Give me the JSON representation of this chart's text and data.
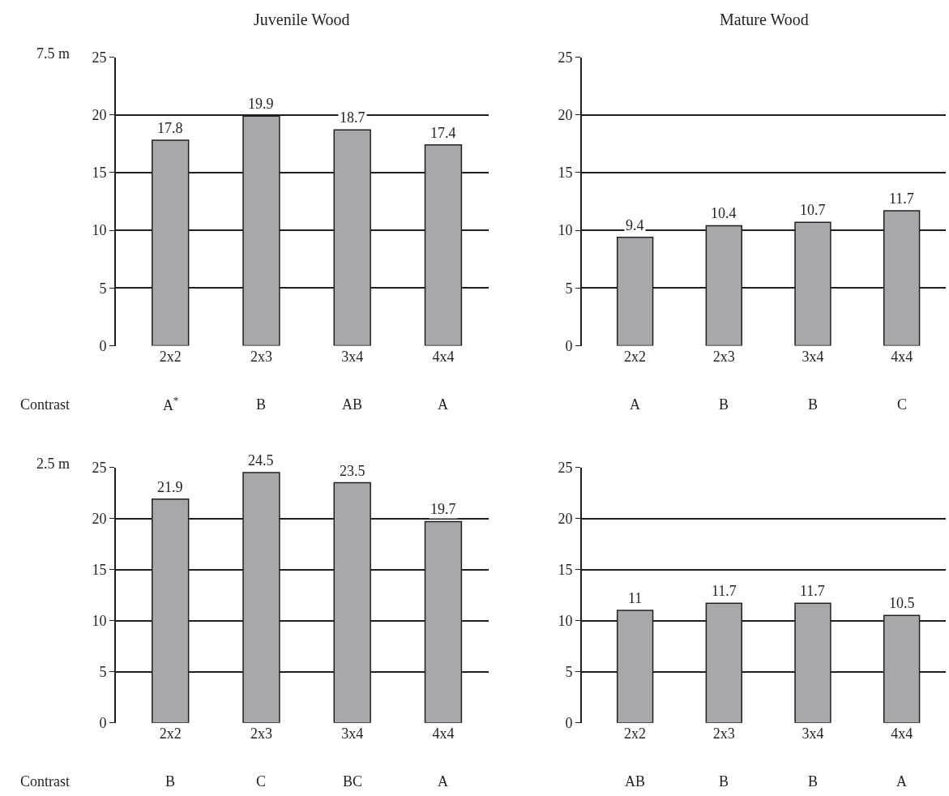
{
  "chart_data": [
    {
      "type": "bar",
      "title": "Juvenile Wood",
      "categories": [
        "2x2",
        "2x3",
        "3x4",
        "4x4"
      ],
      "values": [
        17.8,
        19.9,
        18.7,
        17.4
      ],
      "color": "#a7a8ab",
      "ylim": [
        0,
        25
      ],
      "yticks": [
        0,
        5,
        10,
        15,
        20,
        25
      ],
      "grid": "y",
      "data_labels": true,
      "annotations": [
        "7.5 m",
        "Contrast",
        "A$^{*}$",
        "B",
        "AB",
        "A"
      ]
    },
    {
      "type": "bar",
      "title": "Mature Wood",
      "categories": [
        "2x2",
        "2x3",
        "3x4",
        "4x4"
      ],
      "values": [
        9.4,
        10.4,
        10.7,
        11.7
      ],
      "color": "#a7a8ab",
      "ylim": [
        0,
        25
      ],
      "yticks": [
        0,
        5,
        10,
        15,
        20,
        25
      ],
      "grid": "y",
      "data_labels": true,
      "annotations": [
        "A",
        "B",
        "B",
        "C"
      ]
    },
    {
      "type": "bar",
      "categories": [
        "2x2",
        "2x3",
        "3x4",
        "4x4"
      ],
      "values": [
        21.9,
        24.5,
        23.5,
        19.7
      ],
      "color": "#a7a8ab",
      "ylim": [
        0,
        25
      ],
      "yticks": [
        0,
        5,
        10,
        15,
        20,
        25
      ],
      "grid": "y",
      "data_labels": true,
      "annotations": [
        "2.5 m",
        "Contrast",
        "B",
        "C",
        "BC",
        "A"
      ]
    },
    {
      "type": "bar",
      "categories": [
        "2x2",
        "2x3",
        "3x4",
        "4x4"
      ],
      "values": [
        11,
        11.7,
        11.7,
        10.5
      ],
      "color": "#a7a8ab",
      "ylim": [
        0,
        25
      ],
      "yticks": [
        0,
        5,
        10,
        15,
        20,
        25
      ],
      "grid": "y",
      "data_labels": true,
      "annotations": [
        "AB",
        "B",
        "B",
        "A"
      ]
    }
  ]
}
